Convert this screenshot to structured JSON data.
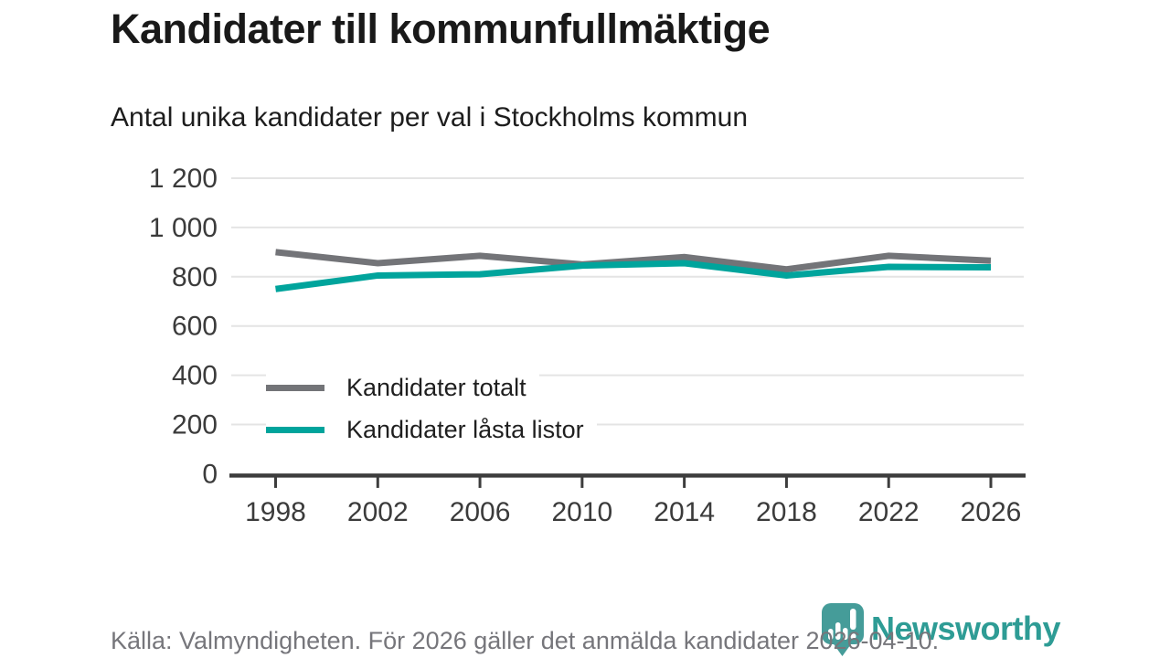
{
  "title": "Kandidater till kommunfullmäktige",
  "subtitle": "Antal unika kandidater per val i Stockholms kommun",
  "legend": [
    {
      "label": "Kandidater totalt",
      "color": "#737478"
    },
    {
      "label": "Kandidater låsta listor",
      "color": "#00a49c"
    }
  ],
  "footer": {
    "source": "Källa: Valmyndigheten. För 2026 gäller det anmälda kandidater 2026-04-10."
  },
  "logo": {
    "brand": "Newsworthy",
    "pin_color": "#459c99",
    "wordmark_color": "#2e9c95"
  },
  "colors": {
    "total_line": "#737478",
    "locked_line": "#00a49c",
    "gridline": "#e4e4e4",
    "axis": "#3d3d3d",
    "tick_label": "#3b3b3b"
  },
  "chart_data": {
    "type": "line",
    "title": "Kandidater till kommunfullmäktige",
    "subtitle": "Antal unika kandidater per val i Stockholms kommun",
    "x": [
      "1998",
      "2002",
      "2006",
      "2010",
      "2014",
      "2018",
      "2022",
      "2026"
    ],
    "series": [
      {
        "name": "Kandidater totalt",
        "color": "#737478",
        "values": [
          900,
          855,
          885,
          850,
          880,
          830,
          885,
          865
        ]
      },
      {
        "name": "Kandidater låsta listor",
        "color": "#00a49c",
        "values": [
          750,
          805,
          810,
          845,
          855,
          805,
          840,
          838
        ]
      }
    ],
    "ylim": [
      0,
      1200
    ],
    "yticks": [
      0,
      200,
      400,
      600,
      800,
      1000,
      1200
    ],
    "ytick_labels": [
      "0",
      "200",
      "400",
      "600",
      "800",
      "1 000",
      "1 200"
    ],
    "grid": "horizontal",
    "legend_position": "inside-left"
  }
}
